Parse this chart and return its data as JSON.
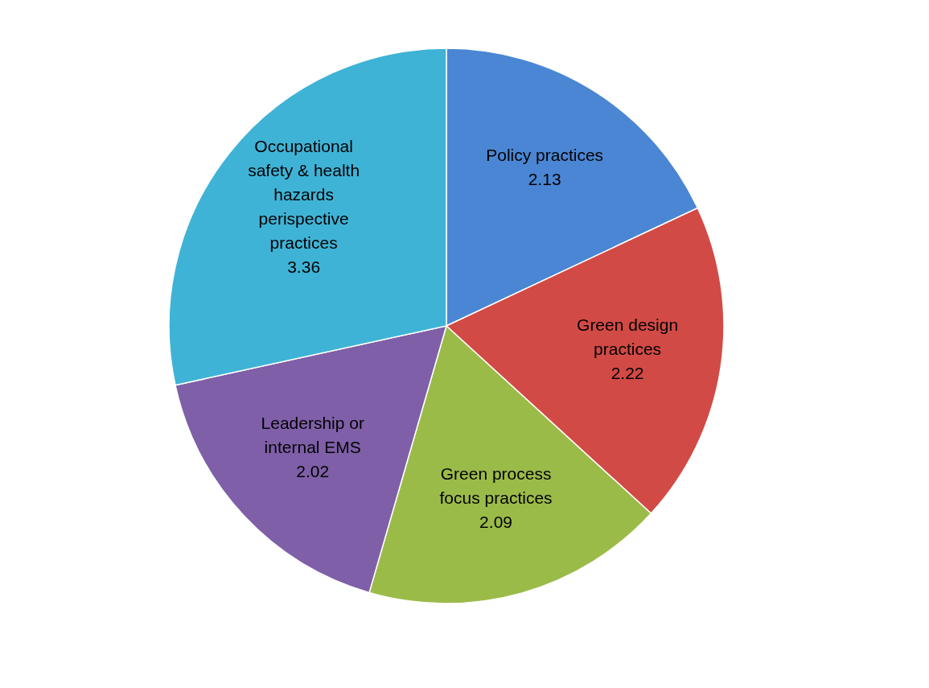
{
  "chart_data": {
    "type": "pie",
    "categories": [
      "Policy practices",
      "Green design practices",
      "Green process focus practices",
      "Leadership or internal EMS",
      "Occupational safety & health hazards perispective practices"
    ],
    "values": [
      2.13,
      2.22,
      2.09,
      2.02,
      3.36
    ],
    "colors": [
      "#4a86d4",
      "#d24a45",
      "#9bbb49",
      "#7f5fa8",
      "#3fb3d6"
    ],
    "data_labels": true,
    "legend": false
  }
}
